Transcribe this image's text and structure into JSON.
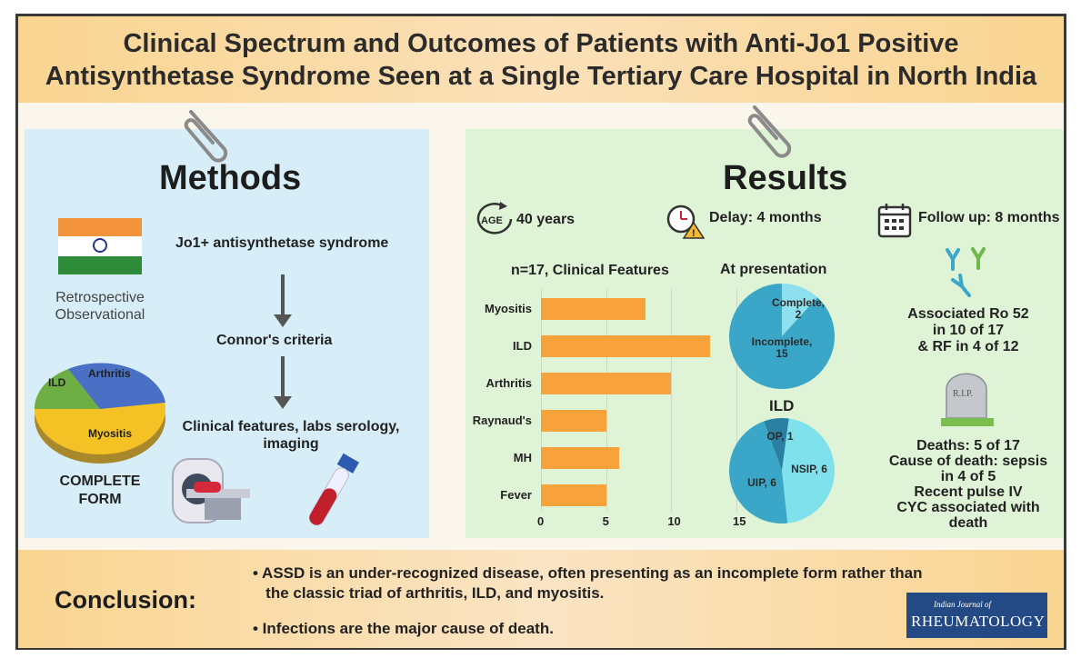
{
  "title": "Clinical Spectrum and Outcomes of Patients with Anti-Jo1 Positive\nAntisynthetase Syndrome Seen at a Single Tertiary Care Hospital in North India",
  "methods": {
    "heading": "Methods",
    "study_type": "Retrospective\nObservational",
    "flow": [
      "Jo1+ antisynthetase syndrome",
      "Connor's criteria",
      "Clinical features, labs serology,\nimaging"
    ],
    "pie_labels": [
      "ILD",
      "Arthritis",
      "Myositis"
    ],
    "pie_caption": "COMPLETE\nFORM"
  },
  "results": {
    "heading": "Results",
    "age_badge": "AGE",
    "age": "40 years",
    "delay": "Delay: 4 months",
    "followup": "Follow up: 8 months",
    "chart_title": "n=17, Clinical Features",
    "presentation_title": "At presentation",
    "ild_title": "ILD",
    "antibody_text": "Associated Ro 52\nin 10  of 17\n& RF in 4 of 12",
    "tomb_text": "R.I.P.",
    "death_text": "Deaths: 5 of 17\nCause of death: sepsis\nin 4 of 5\nRecent pulse IV\nCYC associated with\ndeath"
  },
  "chart_data": [
    {
      "type": "bar",
      "orientation": "horizontal",
      "title": "n=17, Clinical Features",
      "categories": [
        "Myositis",
        "ILD",
        "Arthritis",
        "Raynaud's",
        "MH",
        "Fever"
      ],
      "values": [
        8,
        13,
        10,
        5,
        6,
        5
      ],
      "xlim": [
        0,
        15
      ],
      "xticks": [
        "0",
        "5",
        "10",
        "15"
      ],
      "grid": true
    },
    {
      "type": "pie",
      "title": "At presentation",
      "labels": [
        "Complete,\n2",
        "Incomplete,\n15"
      ],
      "values": [
        2,
        15
      ],
      "colors": [
        "#8ee0ee",
        "#3aa7c8"
      ]
    },
    {
      "type": "pie",
      "title": "ILD",
      "labels": [
        "OP, 1",
        "NSIP, 6",
        "UIP, 6"
      ],
      "values": [
        1,
        6,
        6
      ],
      "colors": [
        "#2a7fa3",
        "#7fe1ec",
        "#3aa7c8"
      ]
    }
  ],
  "conclusion": {
    "heading": "Conclusion:",
    "bullets": [
      "• ASSD is an under-recognized disease, often presenting as an incomplete form rather than\n   the classic triad of arthritis, ILD, and myositis.",
      "• Infections are the major cause of death."
    ]
  },
  "journal": {
    "line1": "Indian Journal of",
    "line2": "RHEUMATOLOGY"
  }
}
